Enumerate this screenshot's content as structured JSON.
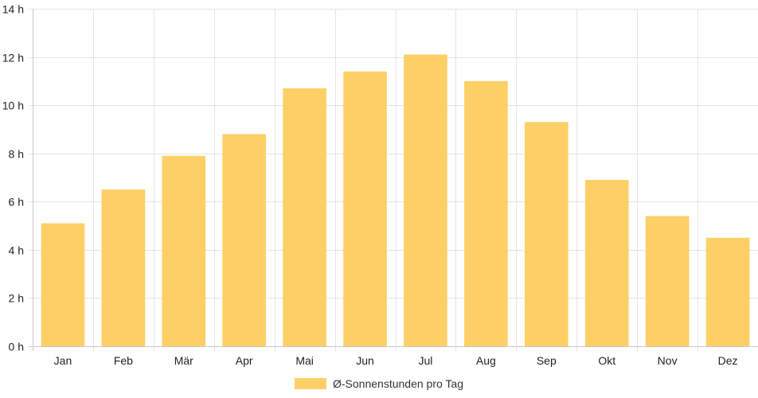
{
  "chart_data": {
    "type": "bar",
    "categories": [
      "Jan",
      "Feb",
      "Mär",
      "Apr",
      "Mai",
      "Jun",
      "Jul",
      "Aug",
      "Sep",
      "Okt",
      "Nov",
      "Dez"
    ],
    "series": [
      {
        "name": "Ø-Sonnenstunden pro Tag",
        "values": [
          5.1,
          6.5,
          7.9,
          8.8,
          10.7,
          11.4,
          12.1,
          11.0,
          9.3,
          6.9,
          5.4,
          4.5
        ]
      }
    ],
    "ylim": [
      0,
      14
    ],
    "yticks": [
      0,
      2,
      4,
      6,
      8,
      10,
      12,
      14
    ],
    "ytick_suffix": " h",
    "grid": true,
    "legend_position": "bottom",
    "bar_color": "#FDD067",
    "grid_color": "#E4E4E4",
    "axis_color": "#C8C8C8"
  }
}
